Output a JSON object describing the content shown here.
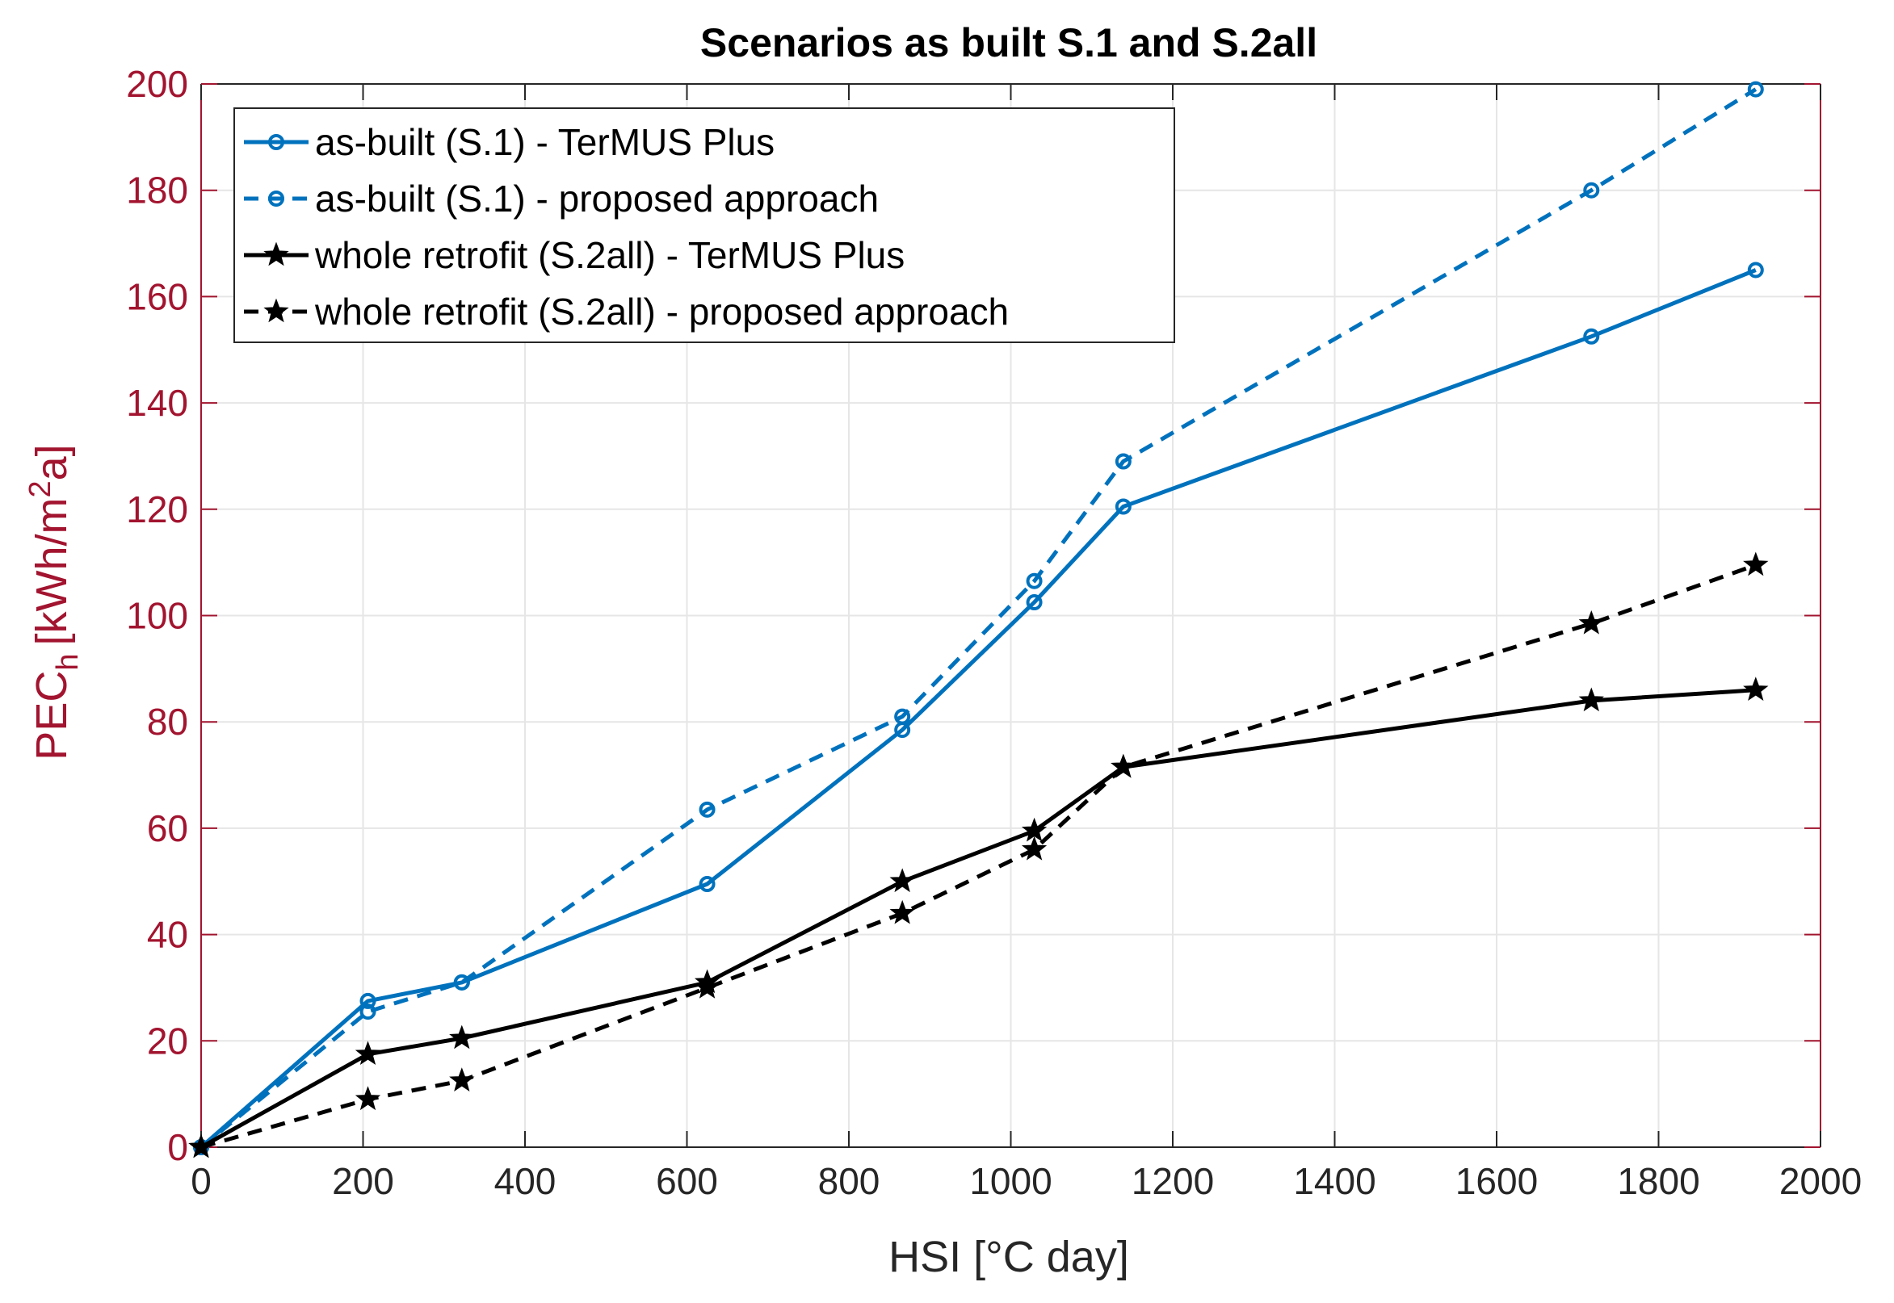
{
  "chart_data": {
    "type": "line",
    "title": "Scenarios as built S.1 and S.2all",
    "xlabel": "HSI [°C day]",
    "ylabel": {
      "base": "PEC",
      "subscript": "h",
      "unit_prefix": "[kWh/m",
      "superscript": "2",
      "unit_suffix": "a]"
    },
    "xlim": [
      0,
      2000
    ],
    "ylim": [
      0,
      200
    ],
    "xticks": [
      0,
      200,
      400,
      600,
      800,
      1000,
      1200,
      1400,
      1600,
      1800,
      2000
    ],
    "yticks": [
      0,
      20,
      40,
      60,
      80,
      100,
      120,
      140,
      160,
      180,
      200
    ],
    "grid": true,
    "legend_position": "top-left",
    "colors": {
      "blue": "#0072BD",
      "black": "#000000",
      "yaxis": "#A2142F",
      "xaxis": "#262626",
      "grid": "#E6E6E6"
    },
    "x": [
      0,
      206,
      322,
      625,
      866,
      1029,
      1139,
      1717,
      1920
    ],
    "series": [
      {
        "name": "as-built (S.1) - TerMUS Plus",
        "color": "#0072BD",
        "line": "solid",
        "marker": "circle",
        "values": [
          0,
          27.5,
          31,
          49.5,
          78.5,
          102.5,
          120.5,
          152.5,
          165
        ]
      },
      {
        "name": "as-built (S.1) - proposed approach",
        "color": "#0072BD",
        "line": "dashed",
        "marker": "circle",
        "values": [
          0,
          25.5,
          31,
          63.5,
          81,
          106.5,
          129,
          180,
          199
        ]
      },
      {
        "name": "whole retrofit (S.2all) - TerMUS Plus",
        "color": "#000000",
        "line": "solid",
        "marker": "star",
        "values": [
          0,
          17.5,
          20.5,
          31,
          50,
          59.5,
          71.5,
          84,
          86
        ]
      },
      {
        "name": "whole retrofit (S.2all) - proposed approach",
        "color": "#000000",
        "line": "dashed",
        "marker": "star",
        "values": [
          0,
          9,
          12.5,
          30,
          44,
          56,
          71.5,
          98.5,
          109.5
        ]
      }
    ]
  }
}
